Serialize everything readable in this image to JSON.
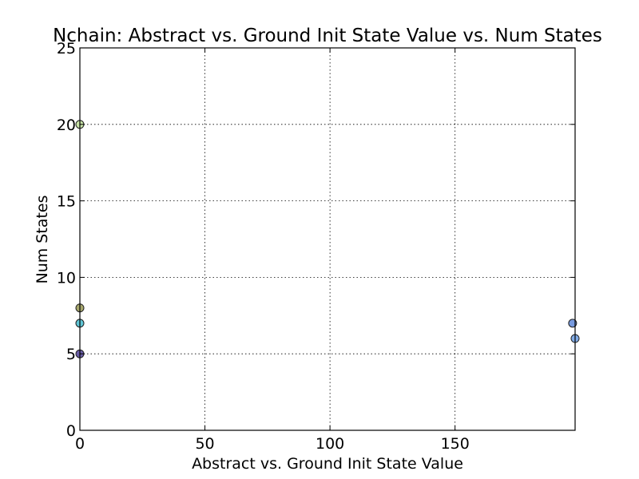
{
  "chart_data": {
    "type": "scatter",
    "title": "Nchain: Abstract vs. Ground Init State Value vs. Num States",
    "xlabel": "Abstract vs. Ground Init State Value",
    "ylabel": "Num States",
    "xlim": [
      0,
      198
    ],
    "ylim": [
      0,
      25
    ],
    "xticks": [
      0,
      50,
      100,
      150
    ],
    "yticks": [
      0,
      5,
      10,
      15,
      20,
      25
    ],
    "xtick_labels": [
      "0",
      "50",
      "100",
      "150"
    ],
    "ytick_labels": [
      "0",
      "5",
      "10",
      "15",
      "20",
      "25"
    ],
    "grid": true,
    "points": [
      {
        "x": 0,
        "y": 20,
        "color": "#b5d98a"
      },
      {
        "x": 0,
        "y": 8,
        "color": "#8a8a3c"
      },
      {
        "x": 0,
        "y": 7,
        "color": "#2bb3c8"
      },
      {
        "x": 0,
        "y": 5,
        "color": "#3b2a8c"
      },
      {
        "x": 197,
        "y": 7,
        "color": "#4a78d4"
      },
      {
        "x": 198,
        "y": 6,
        "color": "#5a92e0"
      }
    ]
  }
}
